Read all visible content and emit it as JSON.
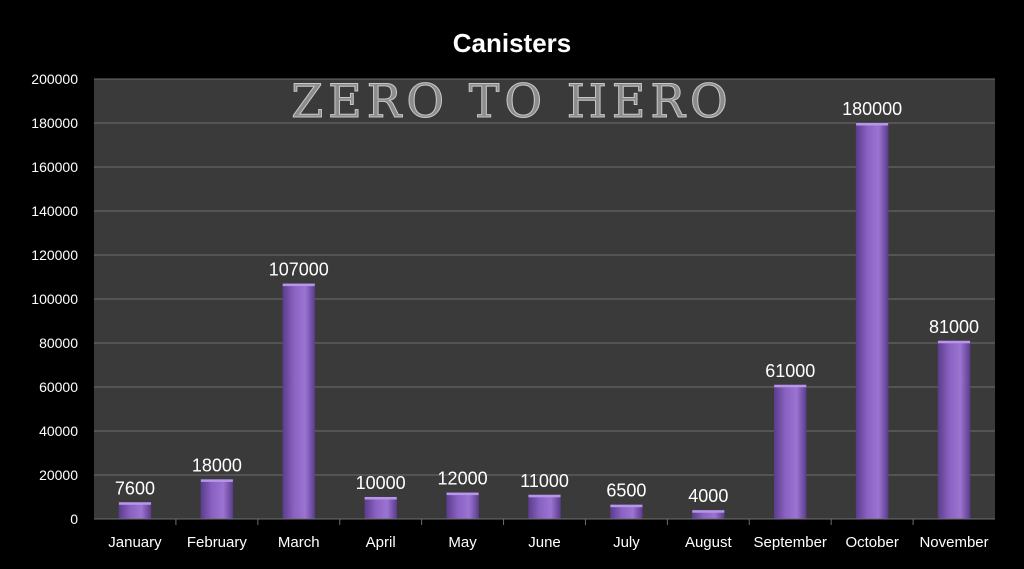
{
  "watermark": "ZERO TO HERO",
  "colors": {
    "background": "#000000",
    "plot_area": "#3a3a3a",
    "gridline": "#6e6e6e",
    "bar": "#8a62c2",
    "bar_dark": "#5b3d8c",
    "bar_light": "#b697e6",
    "text": "#ffffff"
  },
  "chart_data": {
    "type": "bar",
    "title": "Canisters",
    "xlabel": "",
    "ylabel": "",
    "categories": [
      "January",
      "February",
      "March",
      "April",
      "May",
      "June",
      "July",
      "August",
      "September",
      "October",
      "November"
    ],
    "values": [
      7600,
      18000,
      107000,
      10000,
      12000,
      11000,
      6500,
      4000,
      61000,
      180000,
      81000
    ],
    "ylim": [
      0,
      200000
    ],
    "yticks": [
      0,
      20000,
      40000,
      60000,
      80000,
      100000,
      120000,
      140000,
      160000,
      180000,
      200000
    ],
    "grid": true,
    "legend": "none",
    "data_labels": true
  }
}
